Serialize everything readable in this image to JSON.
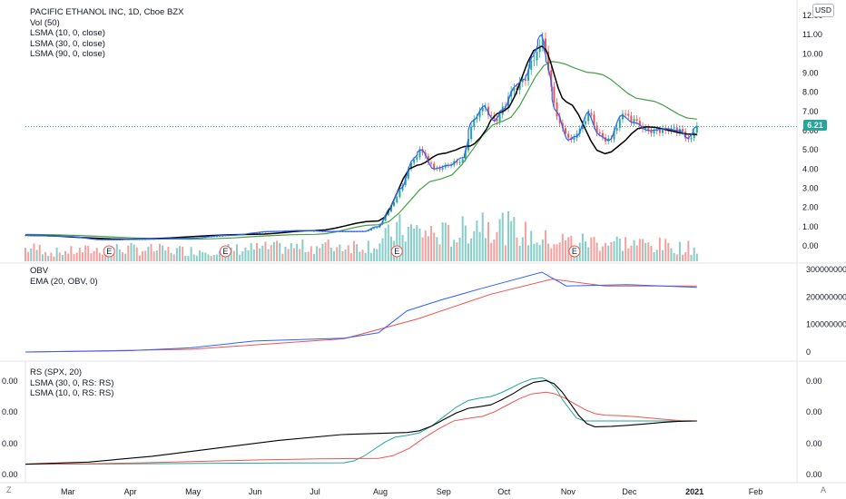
{
  "price_pane": {
    "legend": [
      "PACIFIC ETHANOL INC, 1D, Cboe BZX",
      "Vol (50)",
      "LSMA (10, 0, close)",
      "LSMA (30, 0, close)",
      "LSMA (90, 0, close)"
    ],
    "currency_badge": "USD",
    "last_price": "6.21",
    "y_ticks": [
      "12.00",
      "11.00",
      "10.00",
      "9.00",
      "8.00",
      "7.00",
      "6.00",
      "5.00",
      "4.00",
      "3.00",
      "2.00",
      "1.00",
      "0.00"
    ],
    "earnings_marker": "E"
  },
  "obv_pane": {
    "legend": [
      "OBV",
      "EMA (20, OBV, 0)"
    ],
    "y_ticks": [
      "300000000",
      "200000000",
      "100000000",
      "0"
    ]
  },
  "rs_pane": {
    "legend": [
      "RS (SPX, 20)",
      "LSMA (30, 0, RS: RS)",
      "LSMA (10, 0, RS: RS)"
    ],
    "y_ticks_right": [
      "0.00",
      "0.00",
      "0.00",
      "0.00"
    ],
    "y_ticks_left": [
      "0.00",
      "0.00",
      "0.00",
      "0.00"
    ]
  },
  "time_axis": {
    "labels": [
      "Mar",
      "Apr",
      "May",
      "Jun",
      "Jul",
      "Aug",
      "Sep",
      "Oct",
      "Nov",
      "Dec",
      "2021",
      "Feb"
    ]
  },
  "corner_buttons": {
    "left": "Z",
    "right": "A"
  },
  "colors": {
    "up": "#26a69a",
    "down": "#ef5350",
    "lsma10": "#2962ff",
    "lsma30": "#000000",
    "lsma90": "#43a047",
    "obv": "#2962ff",
    "ema": "#ef5350",
    "rs": "#2962ff",
    "last_price_line": "#26a69a"
  },
  "chart_data": [
    {
      "type": "candlestick",
      "title": "PACIFIC ETHANOL INC, 1D, Cboe BZX",
      "x_range": [
        "2020-02-10",
        "2021-01-04"
      ],
      "ylim": [
        0,
        12.5
      ],
      "price_close": [
        {
          "date": "2020-02-10",
          "close": 0.55
        },
        {
          "date": "2020-03-01",
          "close": 0.5
        },
        {
          "date": "2020-03-20",
          "close": 0.32
        },
        {
          "date": "2020-04-10",
          "close": 0.35
        },
        {
          "date": "2020-05-01",
          "close": 0.4
        },
        {
          "date": "2020-05-20",
          "close": 0.55
        },
        {
          "date": "2020-06-10",
          "close": 0.75
        },
        {
          "date": "2020-06-25",
          "close": 0.8
        },
        {
          "date": "2020-07-10",
          "close": 0.75
        },
        {
          "date": "2020-07-25",
          "close": 0.75
        },
        {
          "date": "2020-08-01",
          "close": 1.0
        },
        {
          "date": "2020-08-07",
          "close": 2.0
        },
        {
          "date": "2020-08-12",
          "close": 3.0
        },
        {
          "date": "2020-08-18",
          "close": 4.5
        },
        {
          "date": "2020-08-22",
          "close": 5.0
        },
        {
          "date": "2020-08-28",
          "close": 4.0
        },
        {
          "date": "2020-09-05",
          "close": 4.2
        },
        {
          "date": "2020-09-12",
          "close": 4.6
        },
        {
          "date": "2020-09-16",
          "close": 6.5
        },
        {
          "date": "2020-09-22",
          "close": 7.3
        },
        {
          "date": "2020-09-27",
          "close": 6.5
        },
        {
          "date": "2020-10-01",
          "close": 7.1
        },
        {
          "date": "2020-10-07",
          "close": 8.3
        },
        {
          "date": "2020-10-12",
          "close": 8.7
        },
        {
          "date": "2020-10-16",
          "close": 9.9
        },
        {
          "date": "2020-10-20",
          "close": 11.0
        },
        {
          "date": "2020-10-23",
          "close": 9.5
        },
        {
          "date": "2020-10-27",
          "close": 7.0
        },
        {
          "date": "2020-11-02",
          "close": 5.5
        },
        {
          "date": "2020-11-06",
          "close": 5.7
        },
        {
          "date": "2020-11-12",
          "close": 7.0
        },
        {
          "date": "2020-11-17",
          "close": 5.8
        },
        {
          "date": "2020-11-22",
          "close": 5.5
        },
        {
          "date": "2020-11-28",
          "close": 6.8
        },
        {
          "date": "2020-12-05",
          "close": 6.4
        },
        {
          "date": "2020-12-12",
          "close": 6.0
        },
        {
          "date": "2020-12-20",
          "close": 6.1
        },
        {
          "date": "2020-12-27",
          "close": 6.0
        },
        {
          "date": "2020-12-31",
          "close": 5.6
        },
        {
          "date": "2021-01-04",
          "close": 6.21
        }
      ],
      "lsma_30": [
        {
          "date": "2020-02-10",
          "v": 0.55
        },
        {
          "date": "2020-04-01",
          "v": 0.35
        },
        {
          "date": "2020-06-01",
          "v": 0.6
        },
        {
          "date": "2020-07-01",
          "v": 0.8
        },
        {
          "date": "2020-08-01",
          "v": 1.3
        },
        {
          "date": "2020-08-20",
          "v": 4.2
        },
        {
          "date": "2020-09-01",
          "v": 4.8
        },
        {
          "date": "2020-09-15",
          "v": 5.2
        },
        {
          "date": "2020-10-01",
          "v": 7.0
        },
        {
          "date": "2020-10-20",
          "v": 10.4
        },
        {
          "date": "2020-11-01",
          "v": 7.5
        },
        {
          "date": "2020-11-20",
          "v": 4.8
        },
        {
          "date": "2020-12-10",
          "v": 6.2
        },
        {
          "date": "2021-01-04",
          "v": 5.8
        }
      ],
      "lsma_90": [
        {
          "date": "2020-02-10",
          "v": 0.6
        },
        {
          "date": "2020-05-01",
          "v": 0.35
        },
        {
          "date": "2020-07-01",
          "v": 0.6
        },
        {
          "date": "2020-08-01",
          "v": 1.1
        },
        {
          "date": "2020-09-01",
          "v": 3.5
        },
        {
          "date": "2020-10-01",
          "v": 6.5
        },
        {
          "date": "2020-10-25",
          "v": 9.6
        },
        {
          "date": "2020-11-15",
          "v": 9.0
        },
        {
          "date": "2020-12-10",
          "v": 7.6
        },
        {
          "date": "2021-01-04",
          "v": 6.6
        }
      ],
      "last_price": 6.21
    },
    {
      "type": "bar",
      "series_name": "Vol (50)",
      "volume_relative": [
        {
          "date": "2020-02-20",
          "v": 0.2
        },
        {
          "date": "2020-03-25",
          "v": 0.3
        },
        {
          "date": "2020-05-01",
          "v": 0.25
        },
        {
          "date": "2020-08-01",
          "v": 0.4
        },
        {
          "date": "2020-08-10",
          "v": 0.75
        },
        {
          "date": "2020-09-08",
          "v": 0.6
        },
        {
          "date": "2020-09-20",
          "v": 1.0
        },
        {
          "date": "2020-10-20",
          "v": 0.5
        },
        {
          "date": "2020-11-25",
          "v": 0.45
        },
        {
          "date": "2021-01-04",
          "v": 0.3
        }
      ]
    },
    {
      "type": "line",
      "series": [
        {
          "name": "OBV",
          "points": [
            {
              "date": "2020-02-10",
              "v": 0
            },
            {
              "date": "2020-04-01",
              "v": 5000000
            },
            {
              "date": "2020-05-01",
              "v": 15000000
            },
            {
              "date": "2020-06-01",
              "v": 40000000
            },
            {
              "date": "2020-07-15",
              "v": 50000000
            },
            {
              "date": "2020-08-01",
              "v": 70000000
            },
            {
              "date": "2020-08-15",
              "v": 150000000
            },
            {
              "date": "2020-09-01",
              "v": 190000000
            },
            {
              "date": "2020-09-20",
              "v": 230000000
            },
            {
              "date": "2020-10-20",
              "v": 290000000
            },
            {
              "date": "2020-11-01",
              "v": 240000000
            },
            {
              "date": "2020-12-01",
              "v": 245000000
            },
            {
              "date": "2021-01-04",
              "v": 235000000
            }
          ]
        },
        {
          "name": "EMA (20, OBV, 0)",
          "points": [
            {
              "date": "2020-02-10",
              "v": 0
            },
            {
              "date": "2020-05-01",
              "v": 10000000
            },
            {
              "date": "2020-07-15",
              "v": 48000000
            },
            {
              "date": "2020-08-20",
              "v": 120000000
            },
            {
              "date": "2020-09-25",
              "v": 210000000
            },
            {
              "date": "2020-10-25",
              "v": 265000000
            },
            {
              "date": "2020-11-20",
              "v": 240000000
            },
            {
              "date": "2021-01-04",
              "v": 240000000
            }
          ]
        }
      ],
      "ylim": [
        0,
        320000000
      ]
    },
    {
      "type": "line",
      "series": [
        {
          "name": "RS (SPX, 20)",
          "points": [
            {
              "date": "2020-02-10",
              "v": 0.0002
            },
            {
              "date": "2020-07-15",
              "v": 0.00025
            },
            {
              "date": "2020-08-15",
              "v": 0.0012
            },
            {
              "date": "2020-09-20",
              "v": 0.0025
            },
            {
              "date": "2020-10-20",
              "v": 0.0032
            },
            {
              "date": "2020-11-10",
              "v": 0.0017
            },
            {
              "date": "2021-01-04",
              "v": 0.0017
            }
          ]
        },
        {
          "name": "LSMA (30, 0, RS: RS)",
          "points": [
            {
              "date": "2020-02-10",
              "v": 0.0002
            },
            {
              "date": "2020-08-01",
              "v": 0.0004
            },
            {
              "date": "2020-09-15",
              "v": 0.0018
            },
            {
              "date": "2020-10-22",
              "v": 0.0027
            },
            {
              "date": "2020-11-20",
              "v": 0.0019
            },
            {
              "date": "2021-01-04",
              "v": 0.0017
            }
          ]
        },
        {
          "name": "LSMA (10, 0, RS: RS)",
          "points": [
            {
              "date": "2020-02-10",
              "v": 0.0002
            },
            {
              "date": "2020-08-15",
              "v": 0.0013
            },
            {
              "date": "2020-09-20",
              "v": 0.0022
            },
            {
              "date": "2020-10-22",
              "v": 0.0031
            },
            {
              "date": "2020-11-15",
              "v": 0.0015
            },
            {
              "date": "2021-01-04",
              "v": 0.0017
            }
          ]
        }
      ],
      "ylim": [
        0,
        0.0034
      ]
    }
  ]
}
